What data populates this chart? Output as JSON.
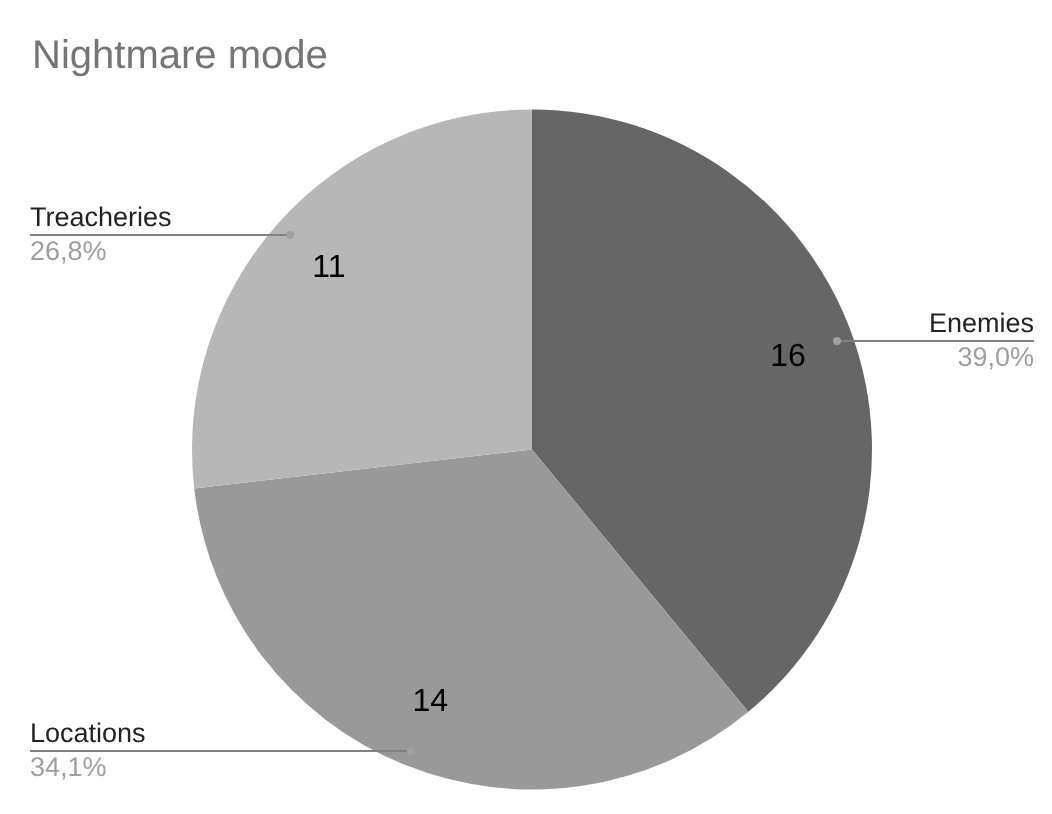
{
  "chart_data": {
    "type": "pie",
    "title": "Nightmare mode",
    "categories": [
      "Enemies",
      "Locations",
      "Treacheries"
    ],
    "values": [
      16,
      14,
      11
    ],
    "colors": [
      "#666666",
      "#999999",
      "#b7b7b7"
    ],
    "data_labels": true,
    "annotations": [
      "39,0%",
      "34,1%",
      "26,8%"
    ]
  }
}
